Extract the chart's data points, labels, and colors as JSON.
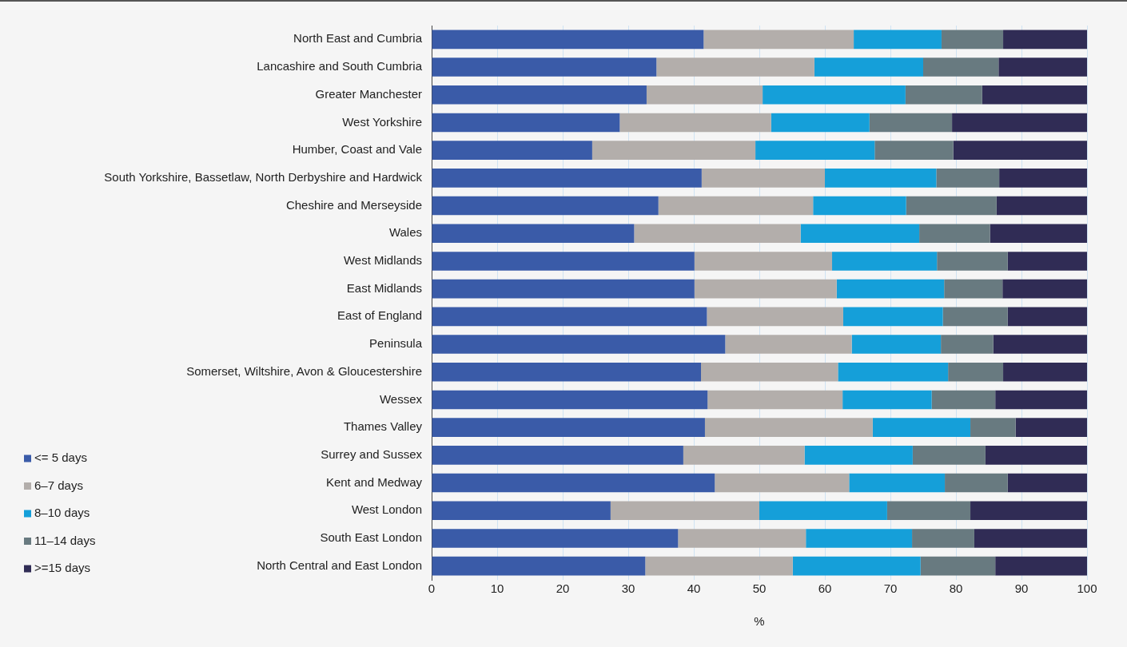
{
  "chart_data": {
    "type": "bar",
    "orientation": "horizontal",
    "stacked": true,
    "xlabel": "%",
    "categories": [
      "North East and Cumbria",
      "Lancashire and South Cumbria",
      "Greater Manchester",
      "West Yorkshire",
      "Humber, Coast and Vale",
      "South Yorkshire, Bassetlaw, North Derbyshire and Hardwick",
      "Cheshire and Merseyside",
      "Wales",
      "West Midlands",
      "East Midlands",
      "East of England",
      "Peninsula",
      "Somerset, Wiltshire, Avon & Gloucestershire",
      "Wessex",
      "Thames Valley",
      "Surrey and Sussex",
      "Kent and Medway",
      "West London",
      "South East London",
      "North Central and East London"
    ],
    "series": [
      {
        "name": "<= 5 days",
        "color": "#3a5ba8",
        "values": [
          41.5,
          34.3,
          32.8,
          28.7,
          24.5,
          41.2,
          34.6,
          30.9,
          40.1,
          40.1,
          42.0,
          44.8,
          41.1,
          42.1,
          41.7,
          38.4,
          43.2,
          27.3,
          37.6,
          32.6
        ]
      },
      {
        "name": "6–7 days",
        "color": "#b3aeab",
        "values": [
          22.9,
          24.1,
          17.7,
          23.1,
          24.9,
          18.8,
          23.6,
          25.4,
          21.0,
          21.7,
          20.8,
          19.3,
          20.9,
          20.6,
          25.6,
          18.5,
          20.5,
          22.7,
          19.5,
          22.5
        ]
      },
      {
        "name": "8–10 days",
        "color": "#159fd9",
        "values": [
          13.4,
          16.6,
          21.8,
          15.0,
          18.2,
          17.0,
          14.2,
          18.1,
          16.0,
          16.4,
          15.2,
          13.6,
          16.8,
          13.6,
          14.9,
          16.5,
          14.6,
          19.5,
          16.2,
          19.5
        ]
      },
      {
        "name": "11–14 days",
        "color": "#687a80",
        "values": [
          9.4,
          11.5,
          11.7,
          12.6,
          12.0,
          9.6,
          13.8,
          10.8,
          10.8,
          8.9,
          9.9,
          8.0,
          8.4,
          9.7,
          6.9,
          11.1,
          9.6,
          12.7,
          9.5,
          11.4
        ]
      },
      {
        "name": ">=15 days",
        "color": "#302c55",
        "values": [
          12.8,
          13.5,
          16.0,
          20.6,
          20.4,
          13.4,
          13.8,
          14.8,
          12.1,
          12.9,
          12.1,
          14.3,
          12.8,
          14.0,
          10.9,
          15.5,
          12.1,
          17.8,
          17.2,
          14.0
        ]
      }
    ],
    "xlim": [
      0,
      100
    ],
    "xticks": [
      0,
      10,
      20,
      30,
      40,
      50,
      60,
      70,
      80,
      90,
      100
    ],
    "grid": "x",
    "legend": "left"
  }
}
